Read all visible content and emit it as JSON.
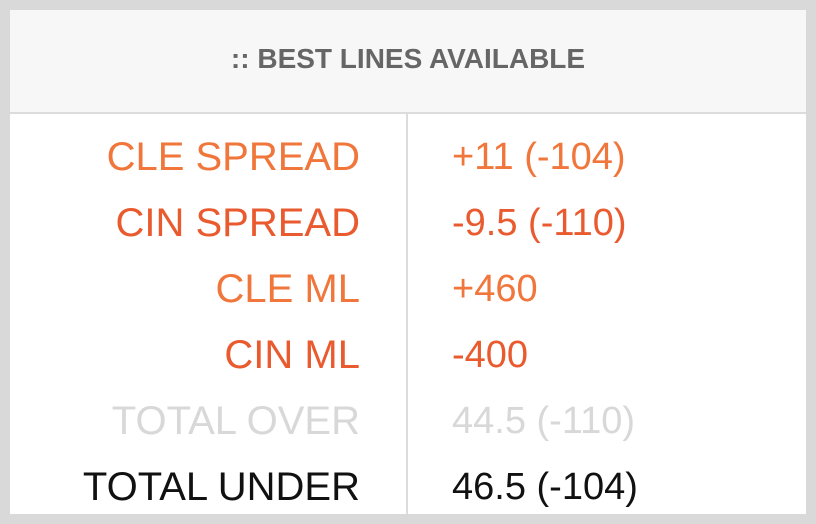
{
  "header": {
    "title": ":: BEST LINES AVAILABLE"
  },
  "colors": {
    "background": "#d9d9d9",
    "card": "#ffffff",
    "header_bg": "#f7f7f7",
    "header_text": "#666666",
    "divider": "#dcdcdc"
  },
  "rows": [
    {
      "label": "CLE SPREAD",
      "value": "+11 (-104)",
      "color": "#f0763b"
    },
    {
      "label": "CIN SPREAD",
      "value": "-9.5 (-110)",
      "color": "#ea5a2f"
    },
    {
      "label": "CLE ML",
      "value": "+460",
      "color": "#f0763b"
    },
    {
      "label": "CIN ML",
      "value": "-400",
      "color": "#ea5a2f"
    },
    {
      "label": "TOTAL OVER",
      "value": "44.5 (-110)",
      "color": "#d8d8d8"
    },
    {
      "label": "TOTAL UNDER",
      "value": "46.5 (-104)",
      "color": "#111111"
    }
  ]
}
